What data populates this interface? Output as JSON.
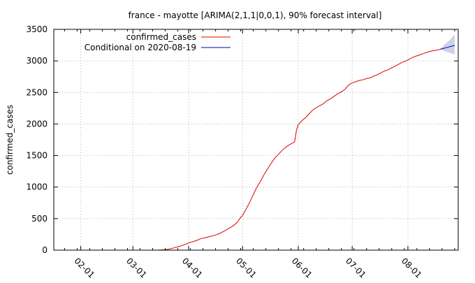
{
  "chart_data": {
    "type": "line",
    "title": "france - mayotte [ARIMA(2,1,1|0,0,1), 90% forecast interval]",
    "xlabel": "",
    "ylabel": "confirmed_cases",
    "xlim": [
      "2020-01-17",
      "2020-08-29"
    ],
    "ylim": [
      0,
      3500
    ],
    "grid": true,
    "legend_position": "top-left",
    "x_tick_labels": [
      "02-01",
      "03-01",
      "04-01",
      "05-01",
      "06-01",
      "07-01",
      "08-01"
    ],
    "x_tick_dates": [
      "2020-02-01",
      "2020-03-01",
      "2020-04-01",
      "2020-05-01",
      "2020-06-01",
      "2020-07-01",
      "2020-08-01"
    ],
    "y_ticks": [
      0,
      500,
      1000,
      1500,
      2000,
      2500,
      3000,
      3500
    ],
    "series": [
      {
        "name": "confirmed_cases",
        "color": "#dd0000",
        "points": [
          [
            "2020-03-13",
            0
          ],
          [
            "2020-03-15",
            1
          ],
          [
            "2020-03-17",
            4
          ],
          [
            "2020-03-19",
            7
          ],
          [
            "2020-03-21",
            15
          ],
          [
            "2020-03-23",
            30
          ],
          [
            "2020-03-25",
            45
          ],
          [
            "2020-03-27",
            60
          ],
          [
            "2020-03-29",
            80
          ],
          [
            "2020-03-31",
            100
          ],
          [
            "2020-04-02",
            125
          ],
          [
            "2020-04-04",
            140
          ],
          [
            "2020-04-06",
            160
          ],
          [
            "2020-04-08",
            185
          ],
          [
            "2020-04-10",
            195
          ],
          [
            "2020-04-12",
            210
          ],
          [
            "2020-04-14",
            225
          ],
          [
            "2020-04-16",
            240
          ],
          [
            "2020-04-18",
            260
          ],
          [
            "2020-04-20",
            290
          ],
          [
            "2020-04-22",
            320
          ],
          [
            "2020-04-24",
            355
          ],
          [
            "2020-04-26",
            390
          ],
          [
            "2020-04-28",
            440
          ],
          [
            "2020-04-30",
            520
          ],
          [
            "2020-05-01",
            550
          ],
          [
            "2020-05-03",
            650
          ],
          [
            "2020-05-05",
            760
          ],
          [
            "2020-05-07",
            880
          ],
          [
            "2020-05-09",
            1000
          ],
          [
            "2020-05-11",
            1090
          ],
          [
            "2020-05-13",
            1200
          ],
          [
            "2020-05-15",
            1290
          ],
          [
            "2020-05-17",
            1380
          ],
          [
            "2020-05-19",
            1460
          ],
          [
            "2020-05-21",
            1520
          ],
          [
            "2020-05-23",
            1580
          ],
          [
            "2020-05-25",
            1630
          ],
          [
            "2020-05-27",
            1670
          ],
          [
            "2020-05-29",
            1700
          ],
          [
            "2020-05-30",
            1720
          ],
          [
            "2020-05-31",
            1900
          ],
          [
            "2020-06-01",
            1990
          ],
          [
            "2020-06-03",
            2050
          ],
          [
            "2020-06-05",
            2100
          ],
          [
            "2020-06-07",
            2160
          ],
          [
            "2020-06-09",
            2220
          ],
          [
            "2020-06-11",
            2260
          ],
          [
            "2020-06-13",
            2290
          ],
          [
            "2020-06-15",
            2320
          ],
          [
            "2020-06-17",
            2370
          ],
          [
            "2020-06-19",
            2400
          ],
          [
            "2020-06-21",
            2440
          ],
          [
            "2020-06-23",
            2480
          ],
          [
            "2020-06-25",
            2510
          ],
          [
            "2020-06-27",
            2550
          ],
          [
            "2020-06-29",
            2620
          ],
          [
            "2020-07-01",
            2650
          ],
          [
            "2020-07-03",
            2670
          ],
          [
            "2020-07-05",
            2690
          ],
          [
            "2020-07-07",
            2700
          ],
          [
            "2020-07-09",
            2720
          ],
          [
            "2020-07-11",
            2730
          ],
          [
            "2020-07-13",
            2760
          ],
          [
            "2020-07-15",
            2780
          ],
          [
            "2020-07-17",
            2810
          ],
          [
            "2020-07-19",
            2840
          ],
          [
            "2020-07-21",
            2860
          ],
          [
            "2020-07-23",
            2890
          ],
          [
            "2020-07-25",
            2920
          ],
          [
            "2020-07-27",
            2950
          ],
          [
            "2020-07-29",
            2980
          ],
          [
            "2020-07-31",
            3000
          ],
          [
            "2020-08-02",
            3030
          ],
          [
            "2020-08-04",
            3060
          ],
          [
            "2020-08-06",
            3080
          ],
          [
            "2020-08-08",
            3100
          ],
          [
            "2020-08-10",
            3120
          ],
          [
            "2020-08-12",
            3140
          ],
          [
            "2020-08-14",
            3155
          ],
          [
            "2020-08-16",
            3165
          ],
          [
            "2020-08-18",
            3175
          ],
          [
            "2020-08-19",
            3185
          ]
        ]
      },
      {
        "name": "Conditional on 2020-08-19",
        "color": "#0000bb",
        "points": [
          [
            "2020-08-19",
            3185
          ],
          [
            "2020-08-21",
            3200
          ],
          [
            "2020-08-23",
            3215
          ],
          [
            "2020-08-25",
            3230
          ],
          [
            "2020-08-27",
            3245
          ]
        ],
        "interval": {
          "level": "90%",
          "color": "#cdd3e6",
          "lower": [
            [
              "2020-08-19",
              3185
            ],
            [
              "2020-08-21",
              3160
            ],
            [
              "2020-08-23",
              3140
            ],
            [
              "2020-08-25",
              3120
            ],
            [
              "2020-08-27",
              3100
            ]
          ],
          "upper": [
            [
              "2020-08-19",
              3185
            ],
            [
              "2020-08-21",
              3250
            ],
            [
              "2020-08-23",
              3300
            ],
            [
              "2020-08-25",
              3350
            ],
            [
              "2020-08-27",
              3420
            ]
          ]
        }
      }
    ]
  }
}
